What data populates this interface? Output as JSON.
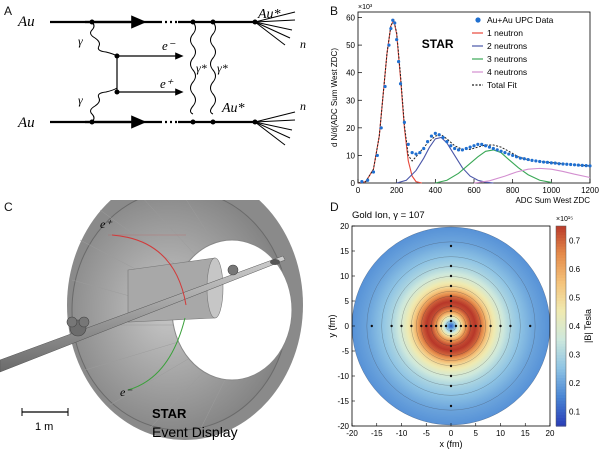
{
  "panels": {
    "A": "A",
    "B": "B",
    "C": "C",
    "D": "D"
  },
  "feynman": {
    "au_in_top": "Au",
    "au_in_bottom": "Au",
    "au_out_top": "Au*",
    "au_out_bottom": "Au*",
    "neutron_top": "n",
    "neutron_bottom": "n",
    "gamma_top": "γ",
    "gamma_bottom": "γ",
    "electron": "e⁻",
    "positron": "e⁺",
    "gamma_star_left": "γ*",
    "gamma_star_right": "γ*"
  },
  "event_display": {
    "positron_label": "e⁺",
    "electron_label": "e⁻",
    "title": "STAR",
    "subtitle": "Event Display",
    "scale_label": "1 m"
  },
  "chart_data": [
    {
      "type": "line",
      "title": "STAR",
      "xlabel": "ADC Sum  West ZDC",
      "ylabel": "d N/d(ADC Sum  West ZDC)",
      "y_multiplier": "×10³",
      "xlim": [
        0,
        1200
      ],
      "ylim": [
        0,
        62
      ],
      "x_ticks": [
        0,
        200,
        400,
        600,
        800,
        1000,
        1200
      ],
      "y_ticks": [
        0,
        10,
        20,
        30,
        40,
        50,
        60
      ],
      "legend_position": "top-right",
      "data_points": {
        "name": "Au+Au  UPC Data",
        "color": "#1f6fd0",
        "x": [
          20,
          50,
          80,
          100,
          120,
          140,
          160,
          170,
          180,
          190,
          200,
          210,
          220,
          240,
          260,
          280,
          300,
          320,
          340,
          360,
          380,
          400,
          420,
          440,
          460,
          480,
          500,
          520,
          540,
          560,
          580,
          600,
          620,
          640,
          660,
          680,
          700,
          720,
          740,
          760,
          780,
          800,
          820,
          840,
          860,
          880,
          900,
          920,
          940,
          960,
          980,
          1000,
          1020,
          1040,
          1060,
          1080,
          1100,
          1120,
          1140,
          1160,
          1180,
          1200
        ],
        "y": [
          0.5,
          1,
          4,
          10,
          20,
          35,
          50,
          56,
          59,
          58,
          52,
          44,
          36,
          22,
          14,
          11,
          10.5,
          11,
          12.5,
          15,
          17,
          18,
          17.5,
          16.5,
          15,
          13.5,
          12.5,
          12,
          12,
          12.5,
          13,
          13.5,
          14,
          14,
          13.5,
          13,
          12.5,
          12,
          11.5,
          11,
          10.5,
          10,
          9.5,
          9,
          8.8,
          8.5,
          8.2,
          8,
          7.8,
          7.6,
          7.5,
          7.3,
          7.2,
          7,
          6.9,
          6.8,
          6.7,
          6.6,
          6.5,
          6.4,
          6.3,
          6.2
        ]
      },
      "series": [
        {
          "name": "1 neutron",
          "color": "#e8473a",
          "x": [
            0,
            40,
            80,
            110,
            130,
            150,
            170,
            185,
            200,
            220,
            240,
            260,
            280,
            300,
            330
          ],
          "y": [
            0,
            0.5,
            5,
            17,
            32,
            47,
            57,
            59,
            54,
            38,
            20,
            8,
            2.5,
            0.5,
            0
          ]
        },
        {
          "name": "2 neutrons",
          "color": "#4a56a8",
          "x": [
            200,
            250,
            300,
            340,
            370,
            400,
            430,
            460,
            500,
            540,
            580,
            620,
            660,
            700
          ],
          "y": [
            0,
            1,
            4.5,
            9,
            13,
            16,
            16.5,
            14.5,
            10,
            5.5,
            2.5,
            1,
            0.3,
            0
          ]
        },
        {
          "name": "3 neutrons",
          "color": "#3aa856",
          "x": [
            400,
            460,
            520,
            570,
            620,
            660,
            700,
            740,
            780,
            830,
            880,
            940,
            1000
          ],
          "y": [
            0,
            1,
            3.5,
            6.5,
            9.5,
            11.5,
            12,
            11,
            8.5,
            5.5,
            3,
            1,
            0.2
          ]
        },
        {
          "name": "4 neutrons",
          "color": "#d38fd0",
          "x": [
            600,
            680,
            760,
            820,
            880,
            940,
            1000,
            1060,
            1120,
            1200
          ],
          "y": [
            0,
            0.8,
            2.5,
            4,
            5,
            5.3,
            5,
            4.2,
            3.2,
            2
          ]
        },
        {
          "name": "Total Fit",
          "color": "#222222",
          "dashed": true,
          "x": [
            0,
            40,
            80,
            110,
            130,
            150,
            170,
            185,
            200,
            220,
            240,
            260,
            280,
            300,
            330,
            360,
            400,
            430,
            460,
            500,
            540,
            580,
            620,
            660,
            700,
            740,
            780,
            830,
            880,
            940,
            1000,
            1060,
            1120,
            1200
          ],
          "y": [
            0,
            0.5,
            5,
            17,
            32,
            47,
            57,
            59,
            54.5,
            39,
            21,
            10,
            8,
            9.5,
            12,
            14.5,
            17,
            17.5,
            16,
            13.5,
            12.2,
            12.2,
            13,
            13.8,
            13.8,
            13,
            11.5,
            9.5,
            8.4,
            7.8,
            7.4,
            7,
            6.6,
            6.2
          ]
        }
      ]
    },
    {
      "type": "heatmap",
      "title": "Gold Ion, γ = 107",
      "xlabel": "x (fm)",
      "ylabel": "y (fm)",
      "xlim": [
        -20,
        20
      ],
      "ylim": [
        -20,
        20
      ],
      "x_ticks": [
        -20,
        -15,
        -10,
        -5,
        0,
        5,
        10,
        15,
        20
      ],
      "y_ticks": [
        -20,
        -15,
        -10,
        -5,
        0,
        5,
        10,
        15,
        20
      ],
      "colorbar_label": "|B| Tesla",
      "colorbar_multiplier": "×10¹⁵",
      "colorbar_range": [
        0.05,
        0.75
      ],
      "colorbar_ticks": [
        0.1,
        0.2,
        0.3,
        0.4,
        0.5,
        0.6,
        0.7
      ],
      "peak_radius_fm": 5,
      "peak_value": 0.75,
      "field_profile": {
        "r_fm": [
          0,
          1,
          2,
          3,
          4,
          5,
          6,
          7,
          8,
          10,
          12,
          14,
          17,
          20
        ],
        "B": [
          0.05,
          0.25,
          0.45,
          0.62,
          0.72,
          0.75,
          0.7,
          0.6,
          0.5,
          0.38,
          0.3,
          0.25,
          0.2,
          0.17
        ]
      }
    }
  ]
}
